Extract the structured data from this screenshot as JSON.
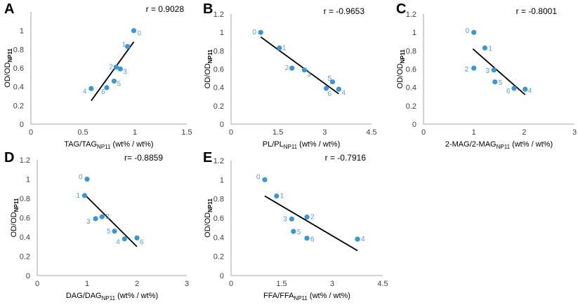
{
  "colors": {
    "point": "#3a96d4",
    "point_label": "#5b9bd5",
    "axis": "#a6a6a6",
    "trend": "#000000"
  },
  "chart_data": [
    {
      "panel": "A",
      "type": "scatter",
      "ylabel_main": "OD/OD",
      "ylabel_sub": "NP11",
      "xlabel_main": "TAG/TAG",
      "xlabel_sub": "NP11",
      "xlabel_tail": " (wt% / wt%)",
      "r_text": "r = 0.9028",
      "xlim": [
        0,
        1.5
      ],
      "ylim": [
        0,
        1.2
      ],
      "xticks": [
        "0",
        "0.5",
        "1",
        "1.5"
      ],
      "xtick_values": [
        0,
        0.5,
        1,
        1.5
      ],
      "yticks": [
        "0",
        "0.2",
        "0.4",
        "0.6",
        "0.8",
        "1"
      ],
      "ytick_values": [
        0,
        0.2,
        0.4,
        0.6,
        0.8,
        1
      ],
      "points": [
        {
          "label": "0",
          "x": 0.99,
          "y": 1.0
        },
        {
          "label": "1",
          "x": 0.93,
          "y": 0.83
        },
        {
          "label": "2",
          "x": 0.82,
          "y": 0.61
        },
        {
          "label": "3",
          "x": 0.86,
          "y": 0.59
        },
        {
          "label": "4",
          "x": 0.58,
          "y": 0.38
        },
        {
          "label": "5",
          "x": 0.8,
          "y": 0.46
        },
        {
          "label": "6",
          "x": 0.73,
          "y": 0.39
        }
      ],
      "trendline": [
        [
          0.58,
          0.25
        ],
        [
          0.99,
          0.88
        ]
      ]
    },
    {
      "panel": "B",
      "type": "scatter",
      "ylabel_main": "OD/OD",
      "ylabel_sub": "NP11",
      "xlabel_main": "PL/PL",
      "xlabel_sub": "NP11",
      "xlabel_tail": " (wt% / wt%)",
      "r_text": "r = -0.9653",
      "xlim": [
        0,
        4.5
      ],
      "ylim": [
        0,
        1.2
      ],
      "xticks": [
        "0",
        "1.5",
        "3",
        "4.5"
      ],
      "xtick_values": [
        0,
        1.5,
        3,
        4.5
      ],
      "yticks": [
        "0",
        "0.2",
        "0.4",
        "0.6",
        "0.8",
        "1",
        "1.2"
      ],
      "ytick_values": [
        0,
        0.2,
        0.4,
        0.6,
        0.8,
        1,
        1.2
      ],
      "points": [
        {
          "label": "0",
          "x": 0.95,
          "y": 1.0
        },
        {
          "label": "1",
          "x": 1.55,
          "y": 0.83
        },
        {
          "label": "2",
          "x": 1.95,
          "y": 0.61
        },
        {
          "label": "3",
          "x": 2.35,
          "y": 0.59
        },
        {
          "label": "4",
          "x": 3.45,
          "y": 0.38
        },
        {
          "label": "5",
          "x": 3.25,
          "y": 0.46
        },
        {
          "label": "6",
          "x": 3.05,
          "y": 0.39
        }
      ],
      "trendline": [
        [
          0.95,
          0.95
        ],
        [
          3.45,
          0.33
        ]
      ]
    },
    {
      "panel": "C",
      "type": "scatter",
      "ylabel_main": "OD/OD",
      "ylabel_sub": "NP11",
      "xlabel_main": "2-MAG/2-MAG",
      "xlabel_sub": "NP11",
      "xlabel_tail": " (wt% / wt%)",
      "r_text": "r = -0.8001",
      "xlim": [
        0,
        3
      ],
      "ylim": [
        0,
        1.2
      ],
      "xticks": [
        "0",
        "1",
        "2",
        "3"
      ],
      "xtick_values": [
        0,
        1,
        2,
        3
      ],
      "yticks": [
        "0",
        "0.2",
        "0.4",
        "0.6",
        "0.8",
        "1",
        "1.2"
      ],
      "ytick_values": [
        0,
        0.2,
        0.4,
        0.6,
        0.8,
        1,
        1.2
      ],
      "points": [
        {
          "label": "0",
          "x": 1.0,
          "y": 1.0
        },
        {
          "label": "1",
          "x": 1.22,
          "y": 0.83
        },
        {
          "label": "2",
          "x": 1.0,
          "y": 0.61
        },
        {
          "label": "3",
          "x": 1.4,
          "y": 0.59
        },
        {
          "label": "4",
          "x": 2.02,
          "y": 0.38
        },
        {
          "label": "5",
          "x": 1.42,
          "y": 0.46
        },
        {
          "label": "6",
          "x": 1.8,
          "y": 0.39
        }
      ],
      "trendline": [
        [
          0.98,
          0.82
        ],
        [
          2.02,
          0.32
        ]
      ]
    },
    {
      "panel": "D",
      "type": "scatter",
      "ylabel_main": "OD/OD",
      "ylabel_sub": "NP11",
      "xlabel_main": "DAG/DAG",
      "xlabel_sub": "NP11",
      "xlabel_tail": " (wt% / wt%)",
      "r_text": "r= -0.8859",
      "xlim": [
        0,
        3
      ],
      "ylim": [
        0,
        1.2
      ],
      "xticks": [
        "0",
        "1",
        "2",
        "3"
      ],
      "xtick_values": [
        0,
        1,
        2,
        3
      ],
      "yticks": [
        "0",
        "0.2",
        "0.4",
        "0.6",
        "0.8",
        "1",
        "1.2"
      ],
      "ytick_values": [
        0,
        0.2,
        0.4,
        0.6,
        0.8,
        1,
        1.2
      ],
      "points": [
        {
          "label": "0",
          "x": 1.0,
          "y": 1.0
        },
        {
          "label": "1",
          "x": 0.95,
          "y": 0.83
        },
        {
          "label": "2",
          "x": 1.3,
          "y": 0.61
        },
        {
          "label": "3",
          "x": 1.17,
          "y": 0.59
        },
        {
          "label": "4",
          "x": 1.75,
          "y": 0.38
        },
        {
          "label": "5",
          "x": 1.55,
          "y": 0.46
        },
        {
          "label": "6",
          "x": 2.0,
          "y": 0.39
        }
      ],
      "trendline": [
        [
          0.95,
          0.84
        ],
        [
          2.0,
          0.3
        ]
      ]
    },
    {
      "panel": "E",
      "type": "scatter",
      "ylabel_main": "OD/OD",
      "ylabel_sub": "NP11",
      "xlabel_main": "FFA/FFA",
      "xlabel_sub": "NP11",
      "xlabel_tail": " (wt% / wt%)",
      "r_text": "r = -0.7916",
      "xlim": [
        0,
        4.5
      ],
      "ylim": [
        0,
        1.2
      ],
      "xticks": [
        "0",
        "1.5",
        "3",
        "4.5"
      ],
      "xtick_values": [
        0,
        1.5,
        3,
        4.5
      ],
      "yticks": [
        "0",
        "0.2",
        "0.4",
        "0.6",
        "0.8",
        "1",
        "1.2"
      ],
      "ytick_values": [
        0,
        0.2,
        0.4,
        0.6,
        0.8,
        1,
        1.2
      ],
      "points": [
        {
          "label": "0",
          "x": 1.0,
          "y": 1.0
        },
        {
          "label": "1",
          "x": 1.35,
          "y": 0.83
        },
        {
          "label": "2",
          "x": 2.25,
          "y": 0.61
        },
        {
          "label": "3",
          "x": 1.8,
          "y": 0.59
        },
        {
          "label": "4",
          "x": 3.75,
          "y": 0.38
        },
        {
          "label": "5",
          "x": 1.85,
          "y": 0.46
        },
        {
          "label": "6",
          "x": 2.25,
          "y": 0.39
        }
      ],
      "trendline": [
        [
          1.0,
          0.83
        ],
        [
          3.75,
          0.26
        ]
      ]
    }
  ]
}
